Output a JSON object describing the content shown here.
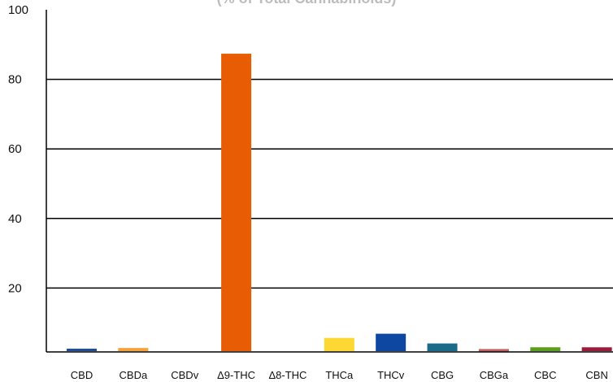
{
  "chart_data": {
    "type": "bar",
    "subtitle": "(% of Total Cannabinoids)",
    "categories": [
      "CBD",
      "CBDa",
      "CBDv",
      "Δ9-THC",
      "Δ8-THC",
      "THCa",
      "THCv",
      "CBG",
      "CBGa",
      "CBC",
      "CBN"
    ],
    "values": [
      0.7,
      0.9,
      0,
      85.5,
      0,
      3.8,
      5.0,
      2.2,
      0.6,
      1.1,
      1.1
    ],
    "colors": [
      "#1f4e9c",
      "#f5a13c",
      "#cccccc",
      "#e85d04",
      "#cccccc",
      "#fdd835",
      "#0d47a1",
      "#1a6b8a",
      "#c0605e",
      "#5a9e1c",
      "#9c1a3a"
    ],
    "yticks": [
      20,
      40,
      60,
      80,
      100
    ],
    "ylim": [
      0,
      100
    ],
    "baseline": 0,
    "grid": true,
    "legend": "none"
  }
}
